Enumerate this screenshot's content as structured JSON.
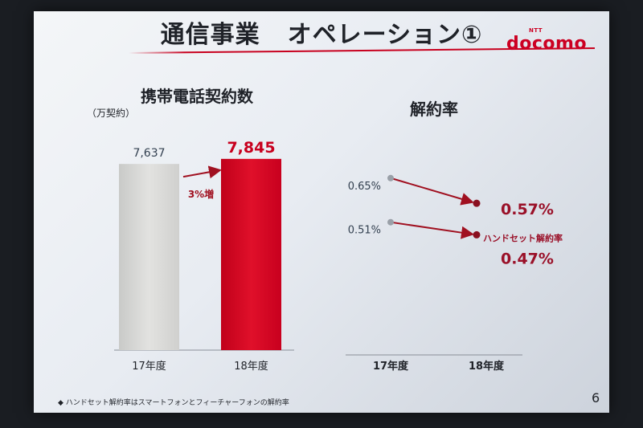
{
  "slide": {
    "title_part1": "通信事業",
    "title_part2": "オペレーション①",
    "logo_text": "docomo",
    "logo_small": "NTT",
    "page_number": "6",
    "footnote": "◆ ハンドセット解約率はスマートフォンとフィーチャーフォンの解約率"
  },
  "left_panel": {
    "title": "携帯電話契約数",
    "unit": "（万契約）"
  },
  "right_panel": {
    "title": "解約率"
  },
  "colors": {
    "accent_red": "#c8001e",
    "bar_gray": "#dcdcda",
    "bar_red": "#d4001e",
    "point_gray": "#9aa0a8",
    "text_dark": "#1f2228"
  },
  "chart_data": [
    {
      "type": "bar",
      "title": "携帯電話契約数",
      "unit": "（万契約）",
      "categories": [
        "17年度",
        "18年度"
      ],
      "values": [
        7637,
        7845
      ],
      "value_labels": [
        "7,637",
        "7,845"
      ],
      "annotation": "3%増",
      "ylim": [
        0,
        8400
      ]
    },
    {
      "type": "line",
      "title": "解約率",
      "categories": [
        "17年度",
        "18年度"
      ],
      "series": [
        {
          "values": [
            0.65,
            0.57
          ],
          "labels": [
            "0.65%",
            "0.57%"
          ]
        },
        {
          "name": "ハンドセット解約率",
          "values": [
            0.51,
            0.47
          ],
          "labels": [
            "0.51%",
            "0.47%"
          ]
        }
      ]
    }
  ]
}
